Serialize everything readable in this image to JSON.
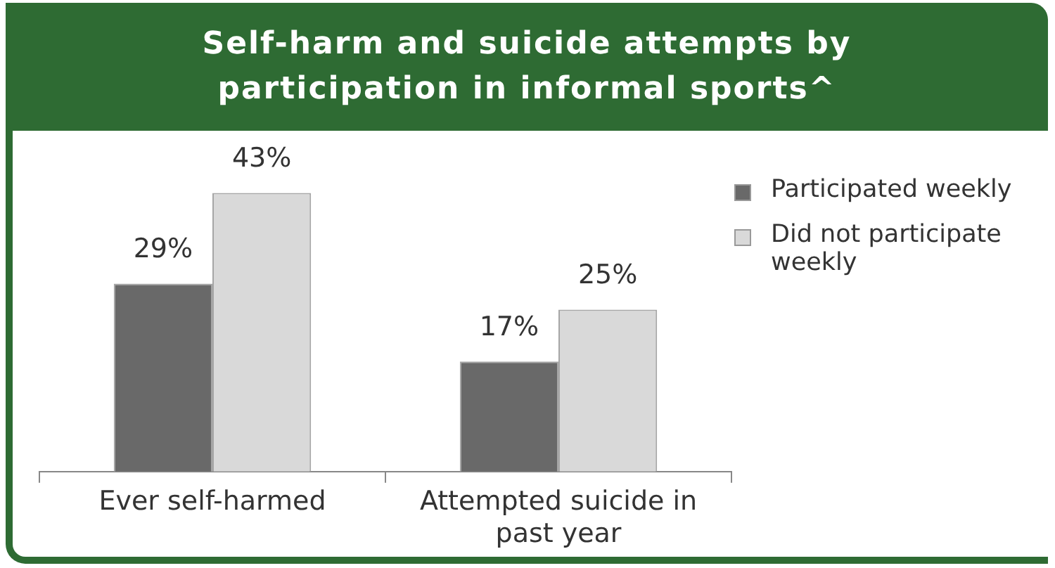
{
  "chart_data": {
    "type": "bar",
    "title": "Self-harm and suicide attempts by participation in informal sports^",
    "categories": [
      "Ever self-harmed",
      "Attempted suicide in past year"
    ],
    "series": [
      {
        "name": "Participated weekly",
        "color": "#696969",
        "values": [
          29,
          17
        ],
        "value_labels": [
          "29%",
          "17%"
        ]
      },
      {
        "name": "Did not participate weekly",
        "color": "#d9d9d9",
        "values": [
          43,
          25
        ],
        "value_labels": [
          "43%",
          "25%"
        ]
      }
    ],
    "legend": "right",
    "tick_labels": "x"
  }
}
